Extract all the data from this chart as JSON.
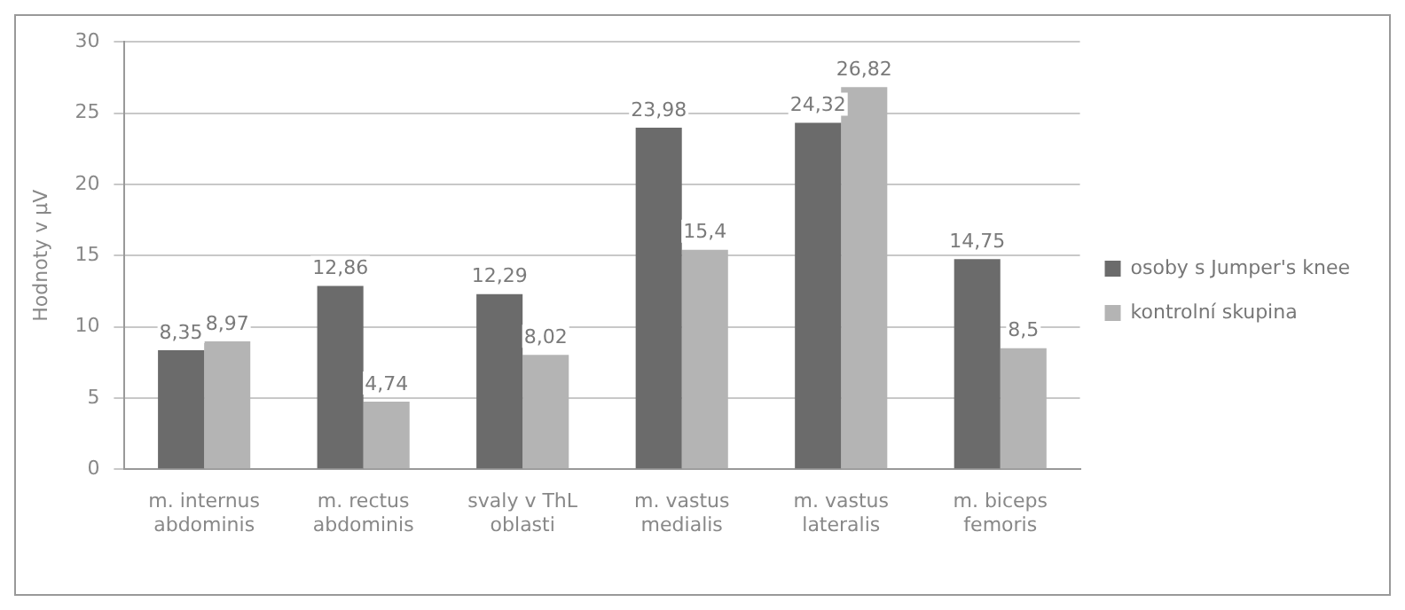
{
  "chart_data": {
    "type": "bar",
    "ylabel": "Hodnoty v µV",
    "categories": [
      "m. internus abdominis",
      "m. rectus abdominis",
      "svaly v ThL oblasti",
      "m. vastus medialis",
      "m. vastus lateralis",
      "m. biceps femoris"
    ],
    "series": [
      {
        "name": "osoby s Jumper's knee",
        "color": "#6b6b6b",
        "values": [
          8.35,
          12.86,
          12.29,
          23.98,
          24.32,
          14.75
        ],
        "value_labels": [
          "8,35",
          "12,86",
          "12,29",
          "23,98",
          "24,32",
          "14,75"
        ]
      },
      {
        "name": "kontrolní skupina",
        "color": "#b4b4b4",
        "values": [
          8.97,
          4.74,
          8.02,
          15.4,
          26.82,
          8.5
        ],
        "value_labels": [
          "8,97",
          "4,74",
          "8,02",
          "15,4",
          "26,82",
          "8,5"
        ]
      }
    ],
    "ylim": [
      0,
      30
    ],
    "yticks": [
      0,
      5,
      10,
      15,
      20,
      25,
      30
    ],
    "grid": "y",
    "legend": "right"
  }
}
